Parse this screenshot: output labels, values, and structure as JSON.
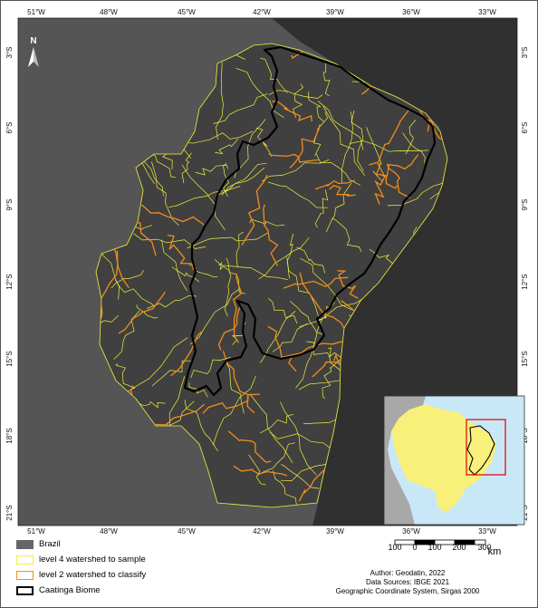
{
  "colors": {
    "ocean": "#303030",
    "brazil": "#555555",
    "region_fill": "#404040",
    "level4": "#f0f03c",
    "level2": "#f28c1c",
    "biome": "#000000",
    "inset_ocean": "#c8e8f8",
    "inset_land": "#a8a8a8",
    "inset_brazil": "#f8f07a",
    "inset_box": "#e00000"
  },
  "north_arrow": {
    "label": "N"
  },
  "longitude_ticks": [
    "51°W",
    "48°W",
    "45°W",
    "42°W",
    "39°W",
    "36°W",
    "33°W"
  ],
  "latitude_ticks": [
    "3°S",
    "6°S",
    "9°S",
    "12°S",
    "15°S",
    "18°S",
    "21°S"
  ],
  "legend": {
    "items": [
      {
        "label": "Brazil",
        "swatch": "fill",
        "color": "#666666"
      },
      {
        "label": "level 4 watershed to sample",
        "swatch": "outline",
        "color": "#f0f03c"
      },
      {
        "label": "level 2 watershed to classify",
        "swatch": "outline",
        "color": "#f28c1c"
      },
      {
        "label": "Caatinga Biome",
        "swatch": "outline",
        "color": "#000000"
      }
    ]
  },
  "scale_bar": {
    "labels": [
      "100",
      "0",
      "100",
      "200",
      "300"
    ],
    "unit": "km"
  },
  "credits": {
    "author": "Author: Geodatin, 2022",
    "sources": "Data Sources: IBGE 2021",
    "crs": "Geographic Coordinate System, Sirgas 2000"
  }
}
